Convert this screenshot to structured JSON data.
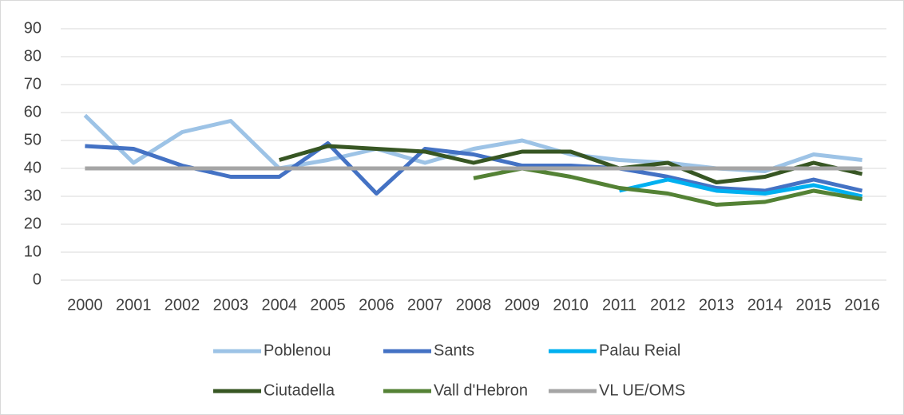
{
  "chart_data": {
    "type": "line",
    "categories": [
      "2000",
      "2001",
      "2002",
      "2003",
      "2004",
      "2005",
      "2006",
      "2007",
      "2008",
      "2009",
      "2010",
      "2011",
      "2012",
      "2013",
      "2014",
      "2015",
      "2016"
    ],
    "series": [
      {
        "name": "Poblenou",
        "color": "#9dc3e6",
        "values": [
          59,
          42,
          53,
          57,
          40,
          43,
          47,
          42,
          47,
          50,
          45,
          43,
          42,
          40,
          39,
          45,
          43
        ]
      },
      {
        "name": "Sants",
        "color": "#4472c4",
        "values": [
          48,
          47,
          41,
          37,
          37,
          49,
          31,
          47,
          45,
          41,
          41,
          40,
          37,
          33,
          32,
          36,
          32
        ]
      },
      {
        "name": "Palau Reial",
        "color": "#00b0f0",
        "values": [
          null,
          null,
          null,
          null,
          null,
          null,
          null,
          null,
          null,
          null,
          null,
          32,
          36,
          32,
          31,
          34,
          30
        ]
      },
      {
        "name": "Ciutadella",
        "color": "#375623",
        "values": [
          null,
          null,
          null,
          null,
          43,
          48,
          47,
          46,
          42,
          46,
          46,
          40,
          42,
          35,
          37,
          42,
          38
        ]
      },
      {
        "name": "Vall d'Hebron",
        "color": "#548235",
        "values": [
          null,
          null,
          null,
          null,
          null,
          null,
          null,
          null,
          36.5,
          40,
          37,
          33,
          31,
          27,
          28,
          32,
          29
        ]
      },
      {
        "name": "VL UE/OMS",
        "color": "#a5a5a5",
        "values": [
          40,
          40,
          40,
          40,
          40,
          40,
          40,
          40,
          40,
          40,
          40,
          40,
          40,
          40,
          40,
          40,
          40
        ]
      }
    ],
    "ylim": [
      0,
      90
    ],
    "yticks": [
      0,
      10,
      20,
      30,
      40,
      50,
      60,
      70,
      80,
      90
    ],
    "grid": true,
    "legend": "bottom"
  }
}
